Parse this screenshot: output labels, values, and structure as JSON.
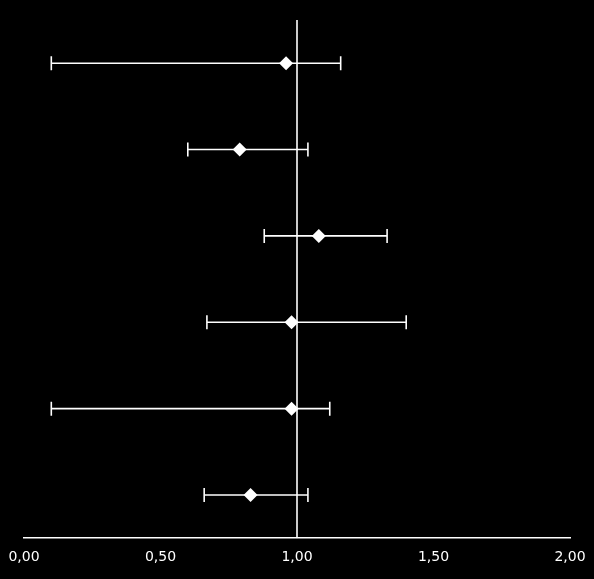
{
  "chart_data": {
    "type": "forest",
    "orientation": "horizontal",
    "categories": [
      null,
      null,
      null,
      null,
      null,
      null
    ],
    "values": [
      0.96,
      0.79,
      1.08,
      0.98,
      0.98,
      0.83
    ],
    "ci_low": [
      0.1,
      0.6,
      0.88,
      0.67,
      0.1,
      0.66
    ],
    "ci_high": [
      1.16,
      1.04,
      1.33,
      1.4,
      1.12,
      1.04
    ],
    "ref_line": 1.0,
    "xlim": [
      0.0,
      2.0
    ],
    "xticks": [
      {
        "value": 0.0,
        "label": "0,00"
      },
      {
        "value": 0.5,
        "label": "0,50"
      },
      {
        "value": 1.0,
        "label": "1,00"
      },
      {
        "value": 1.5,
        "label": "1,50"
      },
      {
        "value": 2.0,
        "label": "2,00"
      }
    ],
    "color": "#ffffff",
    "grid": false,
    "tick_labels": "x"
  }
}
